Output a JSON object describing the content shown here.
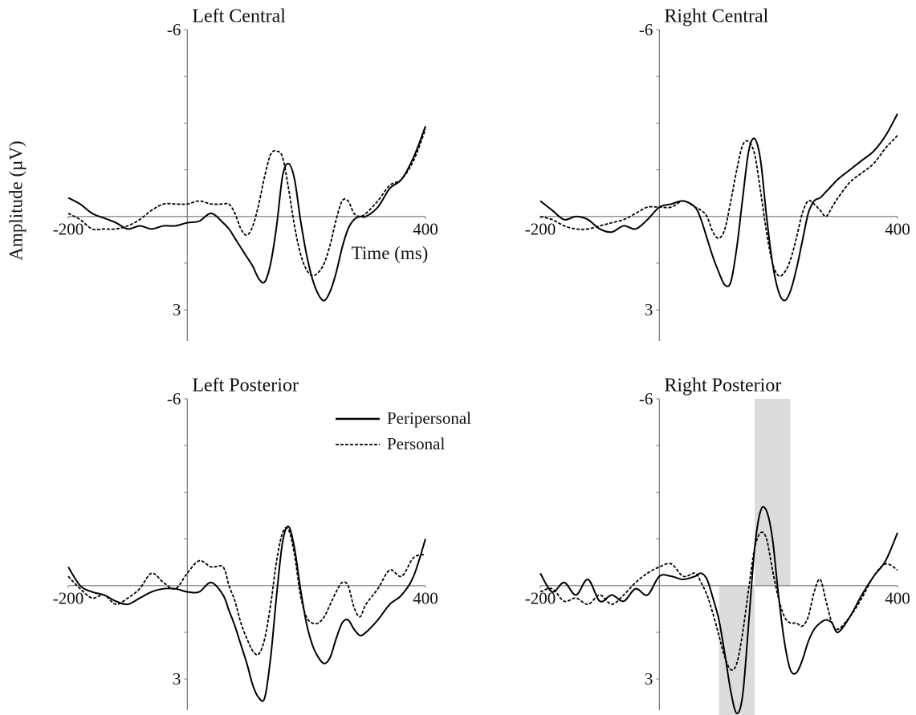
{
  "chart_data": [
    {
      "type": "line",
      "title": "Left Central",
      "xlabel": "Time (ms)",
      "ylabel": "Amplitude (µV)",
      "xlim": [
        -200,
        400
      ],
      "ylim": [
        -6,
        4
      ],
      "y_inverted": true,
      "xticks": [
        -200,
        400
      ],
      "yticks": [
        -6,
        3
      ],
      "yminorticks": [
        -4.5,
        -3,
        -1.5,
        0,
        1.5
      ],
      "x": [
        -200,
        -180,
        -160,
        -140,
        -120,
        -100,
        -80,
        -60,
        -40,
        -20,
        0,
        20,
        40,
        60,
        70,
        80,
        90,
        100,
        110,
        120,
        130,
        140,
        150,
        160,
        170,
        180,
        190,
        200,
        210,
        220,
        230,
        240,
        250,
        260,
        270,
        280,
        290,
        300,
        320,
        340,
        360,
        380,
        400
      ],
      "series": [
        {
          "color": "#000000",
          "dash": "solid",
          "values": [
            -0.6,
            -0.4,
            -0.1,
            0.05,
            0.2,
            0.4,
            0.3,
            0.4,
            0.3,
            0.3,
            0.2,
            0.15,
            -0.1,
            0.2,
            0.4,
            0.7,
            1.0,
            1.3,
            1.6,
            2.0,
            2.1,
            1.5,
            0.3,
            -1.3,
            -1.7,
            -1.2,
            0.1,
            1.2,
            2.0,
            2.5,
            2.7,
            2.4,
            1.8,
            1.0,
            0.4,
            0.1,
            0,
            0,
            -0.3,
            -0.9,
            -1.2,
            -1.9,
            -2.9
          ]
        },
        {
          "color": "#000000",
          "dash": "dashed",
          "values": [
            -0.1,
            0.1,
            0.4,
            0.4,
            0.4,
            0.3,
            0.1,
            -0.2,
            -0.4,
            -0.4,
            -0.4,
            -0.5,
            -0.4,
            -0.4,
            -0.4,
            -0.1,
            0.4,
            0.6,
            0.3,
            -0.4,
            -1.3,
            -2.0,
            -2.1,
            -1.9,
            -0.9,
            0.3,
            1.2,
            1.7,
            1.9,
            1.8,
            1.5,
            0.9,
            0.1,
            -0.5,
            -0.5,
            -0.1,
            0,
            -0.1,
            -0.5,
            -1.0,
            -1.2,
            -1.8,
            -2.8
          ]
        }
      ]
    },
    {
      "type": "line",
      "title": "Right Central",
      "xlim": [
        -200,
        400
      ],
      "ylim": [
        -6,
        4
      ],
      "y_inverted": true,
      "xticks": [
        -200,
        400
      ],
      "yticks": [
        -6,
        3
      ],
      "yminorticks": [
        -4.5,
        -3,
        -1.5,
        0,
        1.5
      ],
      "x": [
        -200,
        -180,
        -160,
        -140,
        -120,
        -100,
        -80,
        -60,
        -40,
        -20,
        0,
        20,
        40,
        60,
        70,
        80,
        90,
        100,
        110,
        120,
        130,
        140,
        150,
        160,
        170,
        180,
        190,
        200,
        210,
        220,
        230,
        240,
        250,
        260,
        270,
        280,
        290,
        300,
        320,
        340,
        360,
        380,
        400
      ],
      "series": [
        {
          "color": "#000000",
          "dash": "solid",
          "values": [
            -0.5,
            -0.2,
            0.1,
            0,
            0.1,
            0.4,
            0.5,
            0.3,
            0.4,
            0.1,
            -0.3,
            -0.4,
            -0.5,
            -0.3,
            0.1,
            0.7,
            1.3,
            1.8,
            2.2,
            2.1,
            1.0,
            -0.6,
            -2.1,
            -2.5,
            -1.8,
            0.0,
            1.5,
            2.4,
            2.7,
            2.4,
            1.7,
            0.8,
            -0.1,
            -0.5,
            -0.6,
            -0.8,
            -1.0,
            -1.2,
            -1.5,
            -1.8,
            -2.1,
            -2.6,
            -3.3
          ]
        },
        {
          "color": "#000000",
          "dash": "dashed",
          "values": [
            0,
            0.1,
            0.3,
            0.4,
            0.4,
            0.3,
            0.2,
            0.1,
            -0.1,
            -0.3,
            -0.3,
            -0.3,
            -0.5,
            -0.3,
            -0.2,
            0,
            0.5,
            0.7,
            0.4,
            -0.5,
            -1.5,
            -2.3,
            -2.4,
            -2.0,
            -0.8,
            0.5,
            1.5,
            1.9,
            1.8,
            1.4,
            0.7,
            -0.1,
            -0.5,
            -0.4,
            -0.2,
            0,
            -0.3,
            -0.6,
            -1.1,
            -1.4,
            -1.7,
            -2.2,
            -2.6
          ]
        }
      ]
    },
    {
      "type": "line",
      "title": "Left Posterior",
      "legend": "upper right",
      "xlim": [
        -200,
        400
      ],
      "ylim": [
        -6,
        4
      ],
      "y_inverted": true,
      "xticks": [
        -200,
        400
      ],
      "yticks": [
        -6,
        3
      ],
      "yminorticks": [
        -4.5,
        -3,
        -1.5,
        0,
        1.5
      ],
      "x": [
        -200,
        -180,
        -160,
        -140,
        -120,
        -100,
        -80,
        -60,
        -40,
        -20,
        0,
        20,
        40,
        60,
        70,
        80,
        90,
        100,
        110,
        120,
        130,
        140,
        150,
        160,
        170,
        180,
        190,
        200,
        210,
        220,
        230,
        240,
        250,
        260,
        270,
        280,
        290,
        300,
        320,
        340,
        360,
        380,
        400
      ],
      "series": [
        {
          "name": "Peripersonal",
          "color": "#000000",
          "dash": "solid",
          "values": [
            -0.6,
            0,
            0.2,
            0.3,
            0.5,
            0.6,
            0.4,
            0.2,
            0.1,
            0.1,
            0.2,
            0.2,
            -0.1,
            0.3,
            0.8,
            1.3,
            1.9,
            2.5,
            3.2,
            3.6,
            3.6,
            2.3,
            0.3,
            -1.4,
            -1.9,
            -1.2,
            0.1,
            1.2,
            1.9,
            2.3,
            2.5,
            2.3,
            1.7,
            1.2,
            1.1,
            1.4,
            1.6,
            1.5,
            1.1,
            0.6,
            0.3,
            -0.3,
            -1.5
          ]
        },
        {
          "name": "Personal",
          "color": "#000000",
          "dash": "dashed",
          "values": [
            -0.3,
            0.1,
            0.4,
            0.3,
            0.6,
            0.4,
            0.1,
            -0.4,
            -0.1,
            0.1,
            -0.4,
            -0.8,
            -0.6,
            -0.6,
            0,
            0.5,
            1.2,
            1.7,
            2.1,
            2.2,
            1.7,
            0.6,
            -0.8,
            -1.7,
            -1.8,
            -1.0,
            0.3,
            1.0,
            1.2,
            1.2,
            1.0,
            0.6,
            0.2,
            -0.1,
            0,
            0.7,
            1.0,
            0.6,
            0.1,
            -0.5,
            -0.3,
            -0.9,
            -1.0
          ]
        }
      ]
    },
    {
      "type": "line",
      "title": "Right Posterior",
      "xlim": [
        -200,
        400
      ],
      "ylim": [
        -6,
        4
      ],
      "y_inverted": true,
      "xticks": [
        -200,
        400
      ],
      "yticks": [
        -6,
        3
      ],
      "yminorticks": [
        -4.5,
        -3,
        -1.5,
        0,
        1.5
      ],
      "highlights": [
        {
          "xlim": [
            100,
            160
          ],
          "ylim": [
            0,
            4.2
          ],
          "color": "#dcdcdc"
        },
        {
          "xlim": [
            160,
            220
          ],
          "ylim": [
            -6,
            0
          ],
          "color": "#dcdcdc"
        }
      ],
      "x": [
        -200,
        -180,
        -160,
        -140,
        -120,
        -100,
        -80,
        -60,
        -40,
        -20,
        0,
        20,
        40,
        60,
        70,
        80,
        90,
        100,
        110,
        120,
        130,
        140,
        150,
        160,
        170,
        180,
        190,
        200,
        210,
        220,
        230,
        240,
        250,
        260,
        270,
        280,
        290,
        300,
        320,
        340,
        360,
        380,
        400
      ],
      "series": [
        {
          "color": "#000000",
          "dash": "solid",
          "values": [
            -0.4,
            0.2,
            -0.1,
            0.3,
            -0.2,
            0.5,
            0.3,
            0.5,
            0.1,
            0.3,
            -0.3,
            -0.3,
            -0.2,
            -0.3,
            -0.4,
            -0.2,
            0.4,
            1.1,
            2.2,
            3.4,
            4.1,
            3.5,
            1.2,
            -1.2,
            -2.4,
            -2.4,
            -1.5,
            0.3,
            1.8,
            2.7,
            2.8,
            2.4,
            1.8,
            1.4,
            1.2,
            1.1,
            1.2,
            1.5,
            1.0,
            0.3,
            -0.3,
            -0.8,
            -1.7
          ]
        },
        {
          "color": "#000000",
          "dash": "dashed",
          "values": [
            0.2,
            0.1,
            0.5,
            0.4,
            0.6,
            0.3,
            0.6,
            0.3,
            -0.1,
            -0.4,
            -0.6,
            -0.7,
            -0.3,
            -0.4,
            -0.1,
            0.3,
            0.9,
            1.6,
            2.3,
            2.7,
            2.5,
            1.5,
            0.1,
            -1.2,
            -1.7,
            -1.5,
            -0.5,
            0.4,
            1.0,
            1.2,
            1.2,
            1.3,
            1.0,
            0.2,
            -0.2,
            0.5,
            1.2,
            1.4,
            1.0,
            0.4,
            -0.3,
            -0.7,
            -0.5
          ]
        }
      ]
    }
  ]
}
